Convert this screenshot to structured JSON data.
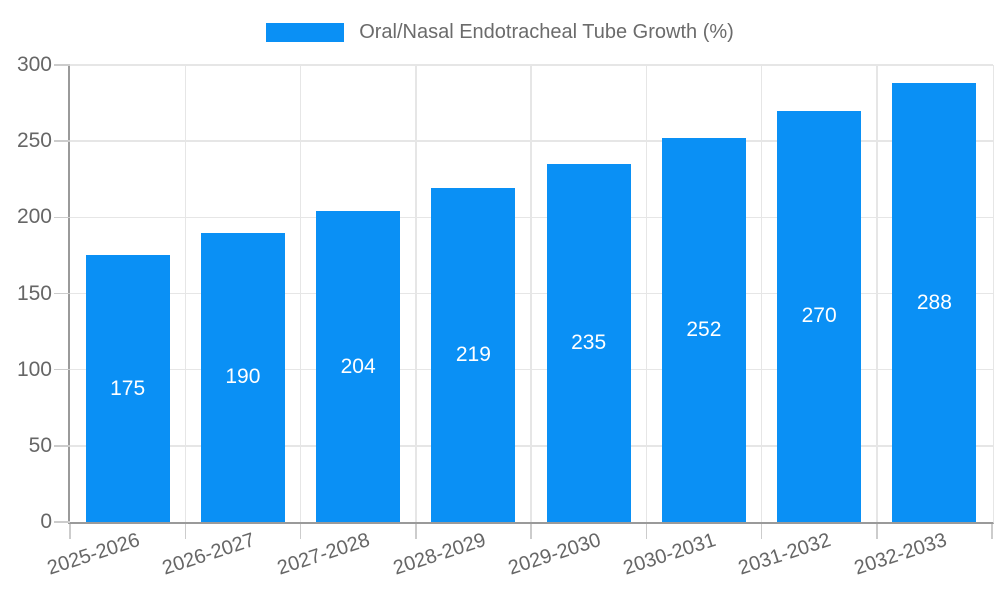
{
  "legend": {
    "label": "Oral/Nasal Endotracheal Tube Growth (%)",
    "swatch_color": "#0A90F5"
  },
  "chart_data": {
    "type": "bar",
    "title": "",
    "categories": [
      "2025-2026",
      "2026-2027",
      "2027-2028",
      "2028-2029",
      "2029-2030",
      "2030-2031",
      "2031-2032",
      "2032-2033"
    ],
    "series": [
      {
        "name": "Oral/Nasal Endotracheal Tube Growth (%)",
        "values": [
          175,
          190,
          204,
          219,
          235,
          252,
          270,
          288
        ]
      }
    ],
    "value_labels_shown": true,
    "xlabel": "",
    "ylabel": "",
    "ylim": [
      0,
      300
    ],
    "yticks": [
      0,
      50,
      100,
      150,
      200,
      250,
      300
    ],
    "grid": true,
    "legend_position": "top",
    "x_tick_rotation_deg": -18,
    "colors": {
      "bar": "#0A90F5",
      "value_label": "#ffffff",
      "grid": "#e6e6e6",
      "axis": "#9a9a9a",
      "tick": "#cccccc",
      "tick_label": "#666666",
      "legend_text": "#6b6b6b",
      "background": "#ffffff"
    }
  }
}
